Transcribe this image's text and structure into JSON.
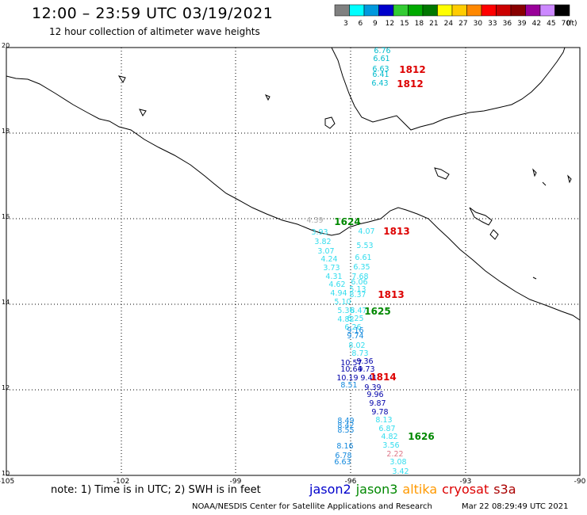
{
  "header": {
    "title": "12:00 – 23:59 UTC 03/19/2021",
    "subtitle": "12 hour collection of altimeter wave heights"
  },
  "colorbar": {
    "unit": "(ft)",
    "bins": [
      {
        "label": "3",
        "color": "#808080"
      },
      {
        "label": "6",
        "color": "#00ffff"
      },
      {
        "label": "9",
        "color": "#0099dd"
      },
      {
        "label": "12",
        "color": "#0000cc"
      },
      {
        "label": "15",
        "color": "#33cc33"
      },
      {
        "label": "18",
        "color": "#00aa00"
      },
      {
        "label": "21",
        "color": "#007700"
      },
      {
        "label": "24",
        "color": "#ffff00"
      },
      {
        "label": "27",
        "color": "#ffcc00"
      },
      {
        "label": "30",
        "color": "#ff8800"
      },
      {
        "label": "33",
        "color": "#ff0000"
      },
      {
        "label": "36",
        "color": "#cc0000"
      },
      {
        "label": "39",
        "color": "#880000"
      },
      {
        "label": "42",
        "color": "#990099"
      },
      {
        "label": "45",
        "color": "#cc88ff"
      },
      {
        "label": "70",
        "color": "#000000"
      }
    ]
  },
  "map": {
    "lat_labels": [
      "20",
      "18",
      "16",
      "14",
      "12",
      "10"
    ],
    "lon_labels": [
      "-105",
      "-102",
      "-99",
      "-96",
      "-93",
      "-90"
    ]
  },
  "passes": [
    {
      "label": "1812",
      "color": "#dd0000"
    },
    {
      "label": "1812",
      "color": "#dd0000"
    },
    {
      "label": "1624",
      "color": "#008800"
    },
    {
      "label": "1813",
      "color": "#dd0000"
    },
    {
      "label": "1813",
      "color": "#dd0000"
    },
    {
      "label": "1625",
      "color": "#008800"
    },
    {
      "label": "1814",
      "color": "#dd0000"
    },
    {
      "label": "1626",
      "color": "#008800"
    }
  ],
  "wave_values": [
    {
      "v": "6.76",
      "c": "#00bbcc"
    },
    {
      "v": "6.61",
      "c": "#00bbcc"
    },
    {
      "v": "6.63",
      "c": "#00bbcc"
    },
    {
      "v": "6.41",
      "c": "#00bbcc"
    },
    {
      "v": "6.43",
      "c": "#00bbcc"
    },
    {
      "v": "4.39",
      "c": "#aaaaaa"
    },
    {
      "v": "3.93",
      "c": "#33ddee"
    },
    {
      "v": "4.07",
      "c": "#33ddee"
    },
    {
      "v": "3.82",
      "c": "#33ddee"
    },
    {
      "v": "5.53",
      "c": "#33ddee"
    },
    {
      "v": "3.07",
      "c": "#33ddee"
    },
    {
      "v": "4.24",
      "c": "#33ddee"
    },
    {
      "v": "6.61",
      "c": "#33ddee"
    },
    {
      "v": "3.73",
      "c": "#33ddee"
    },
    {
      "v": "6.35",
      "c": "#33ddee"
    },
    {
      "v": "4.31",
      "c": "#33ddee"
    },
    {
      "v": "7.68",
      "c": "#33ddee"
    },
    {
      "v": "4.62",
      "c": "#33ddee"
    },
    {
      "v": "6.06",
      "c": "#33ddee"
    },
    {
      "v": "5.13",
      "c": "#33ddee"
    },
    {
      "v": "4.94",
      "c": "#33ddee"
    },
    {
      "v": "8.37",
      "c": "#33ddee"
    },
    {
      "v": "5.10",
      "c": "#33ddee"
    },
    {
      "v": "5.36",
      "c": "#33ddee"
    },
    {
      "v": "8.47",
      "c": "#33ddee"
    },
    {
      "v": "4.82",
      "c": "#33ddee"
    },
    {
      "v": "6.25",
      "c": "#33ddee"
    },
    {
      "v": "6.26",
      "c": "#33ddee"
    },
    {
      "v": "9.16",
      "c": "#1188dd"
    },
    {
      "v": "9.74",
      "c": "#1188dd"
    },
    {
      "v": "8.02",
      "c": "#33ddee"
    },
    {
      "v": "8.73",
      "c": "#33ddee"
    },
    {
      "v": "10.57",
      "c": "#0000aa"
    },
    {
      "v": "9.36",
      "c": "#0000aa"
    },
    {
      "v": "10.64",
      "c": "#0000aa"
    },
    {
      "v": "9.73",
      "c": "#0000aa"
    },
    {
      "v": "10.19",
      "c": "#0000aa"
    },
    {
      "v": "9.41",
      "c": "#0000aa"
    },
    {
      "v": "8.51",
      "c": "#1188dd"
    },
    {
      "v": "9.39",
      "c": "#0000aa"
    },
    {
      "v": "9.96",
      "c": "#0000aa"
    },
    {
      "v": "9.87",
      "c": "#0000aa"
    },
    {
      "v": "9.78",
      "c": "#0000aa"
    },
    {
      "v": "8.49",
      "c": "#1188dd"
    },
    {
      "v": "8.13",
      "c": "#33ddee"
    },
    {
      "v": "8.42",
      "c": "#1188dd"
    },
    {
      "v": "8.55",
      "c": "#1188dd"
    },
    {
      "v": "6.87",
      "c": "#33ddee"
    },
    {
      "v": "4.82",
      "c": "#33ddee"
    },
    {
      "v": "3.56",
      "c": "#33ddee"
    },
    {
      "v": "8.16",
      "c": "#1188dd"
    },
    {
      "v": "2.22",
      "c": "#dd7788"
    },
    {
      "v": "6.78",
      "c": "#1188dd"
    },
    {
      "v": "3.08",
      "c": "#33ddee"
    },
    {
      "v": "6.63",
      "c": "#1188dd"
    },
    {
      "v": "3.42",
      "c": "#33ddee"
    }
  ],
  "footer": {
    "note": "note:  1) Time is in UTC;  2) SWH is in feet",
    "credit": "NOAA/NESDIS Center for Satellite Applications and Research",
    "date": "Mar 22 08:29:49 UTC 2021",
    "satellites": [
      {
        "name": "jason2",
        "color": "#0000cc"
      },
      {
        "name": "jason3",
        "color": "#008800"
      },
      {
        "name": "altika",
        "color": "#ff9900"
      },
      {
        "name": "cryosat",
        "color": "#dd0000"
      },
      {
        "name": "s3a",
        "color": "#aa0000"
      }
    ]
  }
}
